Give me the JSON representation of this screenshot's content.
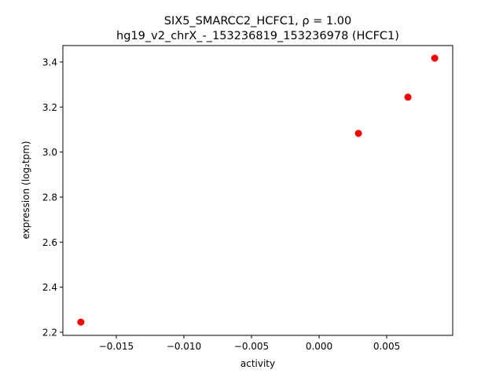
{
  "chart_data": {
    "type": "scatter",
    "title_line1": "SIX5_SMARCC2_HCFC1, ρ = 1.00",
    "title_line2": "hg19_v2_chrX_-_153236819_153236978 (HCFC1)",
    "xlabel": "activity",
    "ylabel": "expression (log₂tpm)",
    "xlim": [
      -0.01895,
      0.00988
    ],
    "ylim": [
      2.186,
      3.473
    ],
    "xticks": [
      -0.015,
      -0.01,
      -0.005,
      0.0,
      0.005
    ],
    "xtick_labels": [
      "−0.015",
      "−0.010",
      "−0.005",
      "0.000",
      "0.005"
    ],
    "yticks": [
      2.2,
      2.4,
      2.6,
      2.8,
      3.0,
      3.2,
      3.4
    ],
    "ytick_labels": [
      "2.2",
      "2.4",
      "2.6",
      "2.8",
      "3.0",
      "3.2",
      "3.4"
    ],
    "points": [
      {
        "x": -0.01762,
        "y": 2.245
      },
      {
        "x": 0.00291,
        "y": 3.083
      },
      {
        "x": 0.00657,
        "y": 3.244
      },
      {
        "x": 0.00855,
        "y": 3.417
      }
    ],
    "marker_color": "#ff0000",
    "grid": false
  }
}
